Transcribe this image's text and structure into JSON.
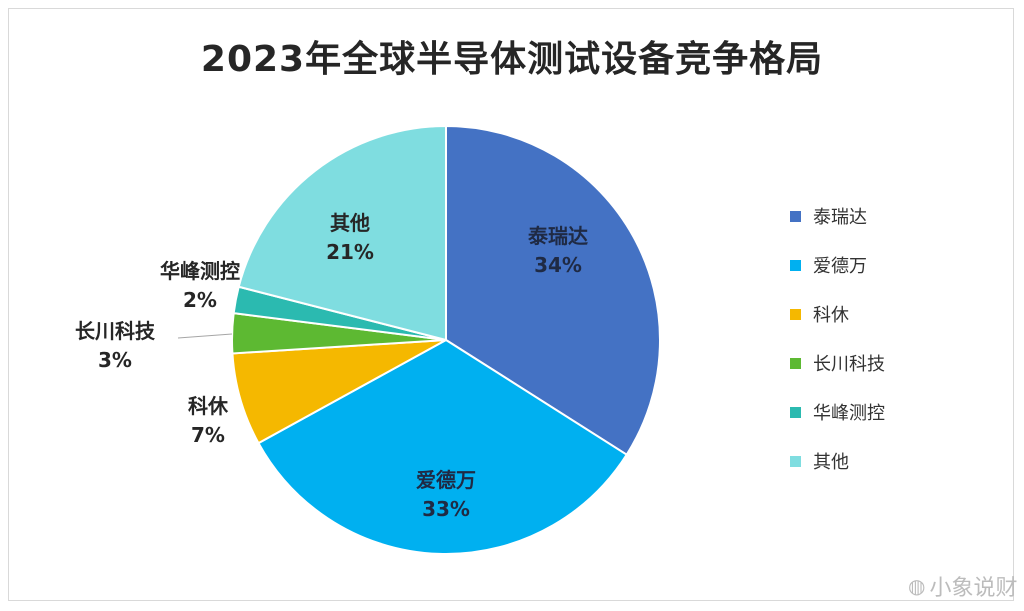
{
  "chart_data": {
    "type": "pie",
    "title": "2023年全球半导体测试设备竞争格局",
    "slices": [
      {
        "label": "泰瑞达",
        "value": 34,
        "value_label": "34%",
        "color": "#4472C4"
      },
      {
        "label": "爱德万",
        "value": 33,
        "value_label": "33%",
        "color": "#00B0F0"
      },
      {
        "label": "科休",
        "value": 7,
        "value_label": "7%",
        "color": "#F5B800"
      },
      {
        "label": "长川科技",
        "value": 3,
        "value_label": "3%",
        "color": "#5DB932"
      },
      {
        "label": "华峰测控",
        "value": 2,
        "value_label": "2%",
        "color": "#2BBAB0"
      },
      {
        "label": "其他",
        "value": 21,
        "value_label": "21%",
        "color": "#7FDDE0"
      }
    ],
    "legend_position": "right",
    "start_angle": "12 o'clock",
    "direction": "clockwise"
  },
  "watermark": {
    "text": "小象说财",
    "icon": "weibo-icon"
  }
}
